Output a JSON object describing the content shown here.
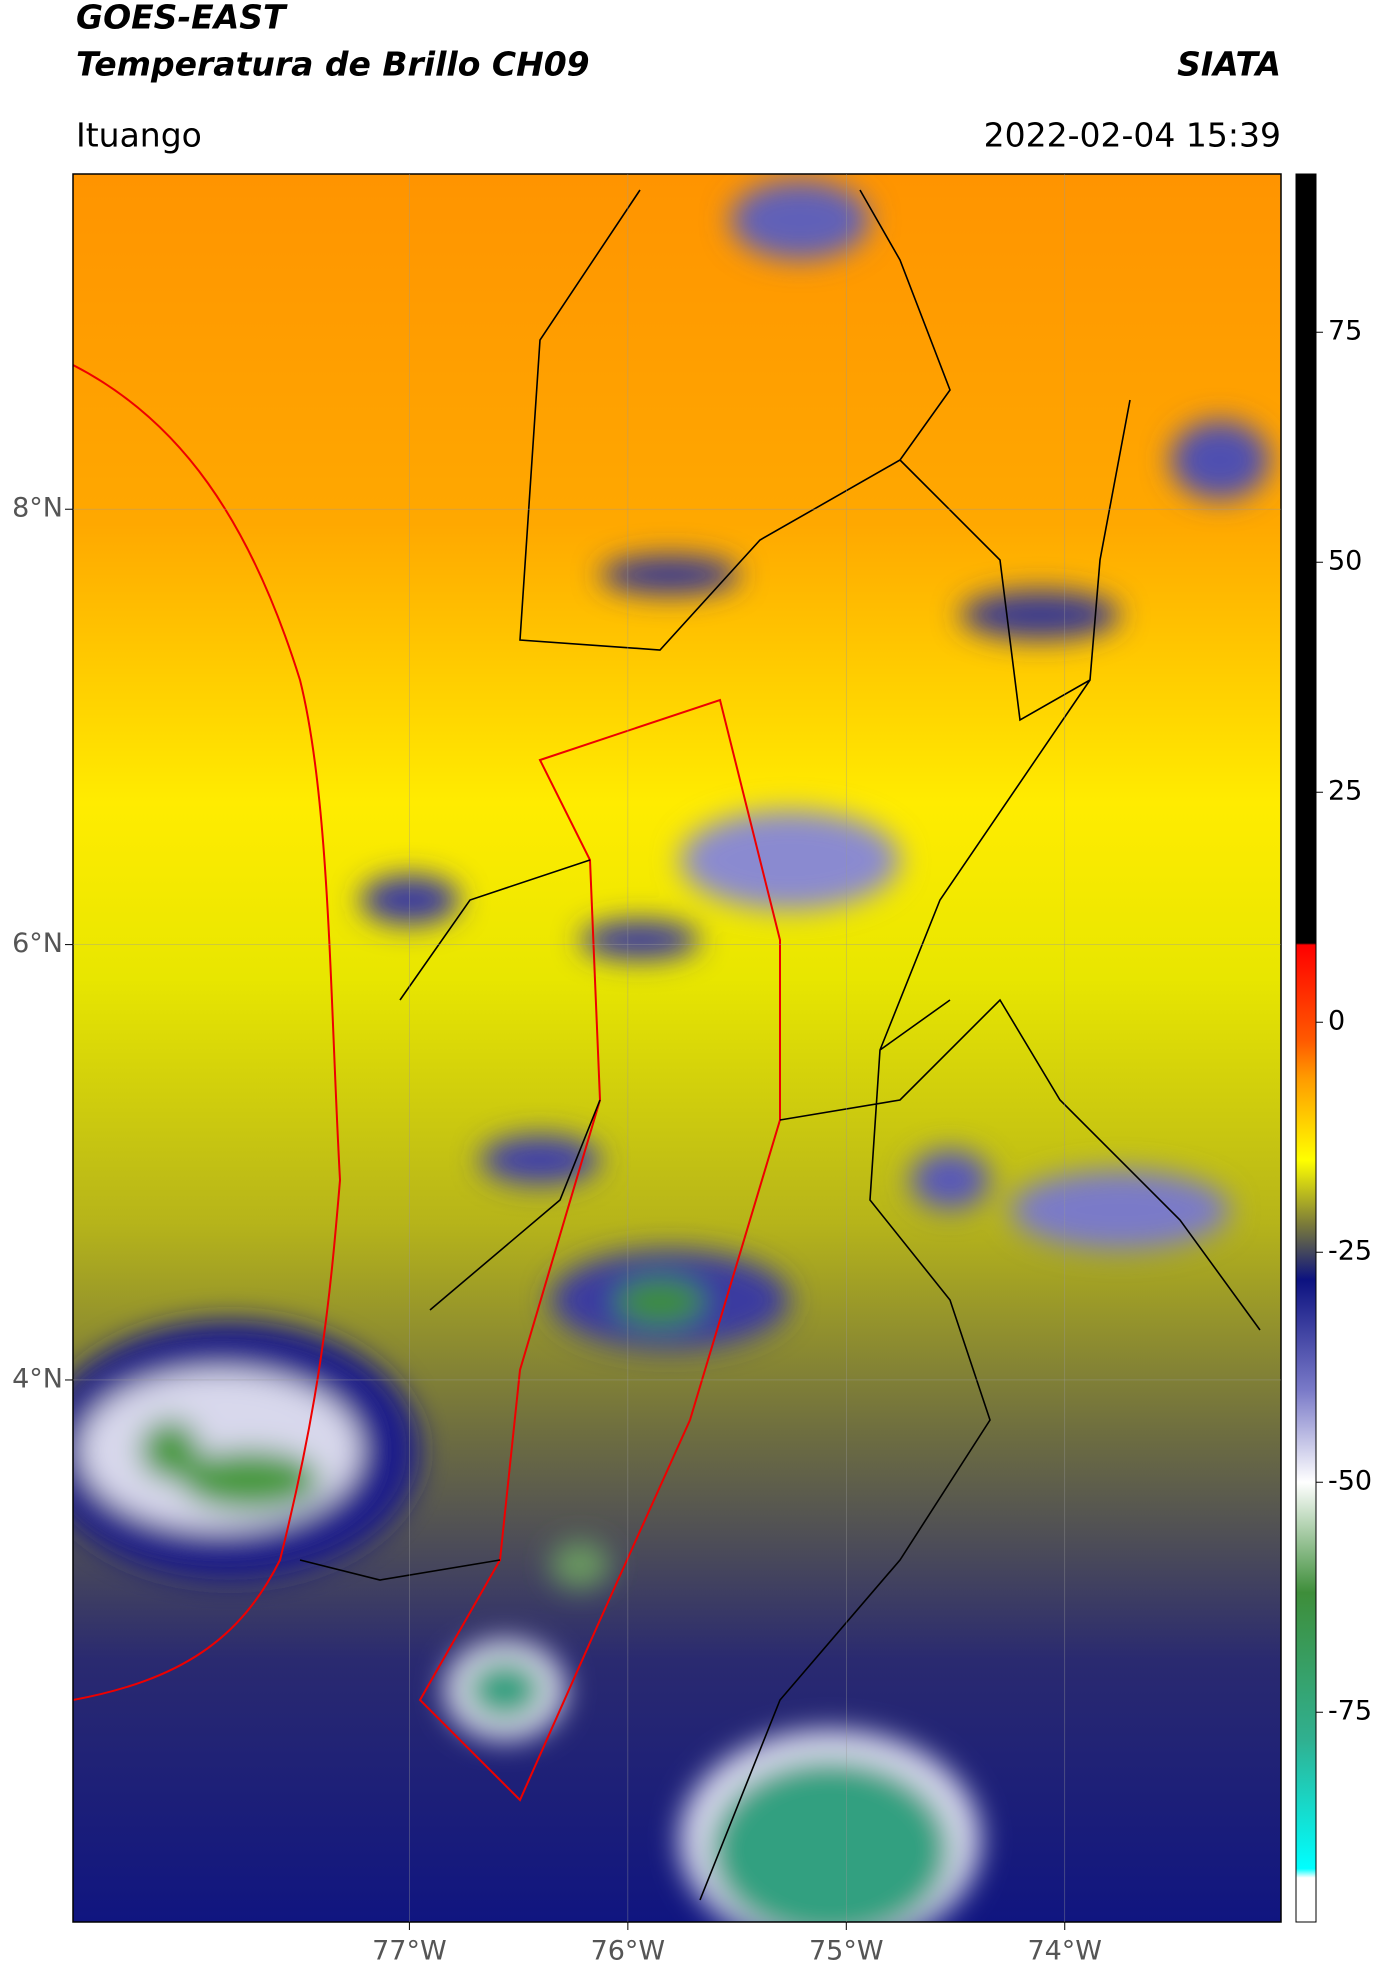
{
  "header": {
    "title": "GOES-EAST",
    "subtitle": "Temperatura de Brillo CH09",
    "brand": "SIATA",
    "location": "Ituango",
    "datetime": "2022-02-04 15:39"
  },
  "map": {
    "xlim": [
      -78.54,
      -73.01
    ],
    "ylim": [
      1.51,
      9.54
    ],
    "xticks": [
      {
        "value": -77,
        "label": "77°W"
      },
      {
        "value": -76,
        "label": "76°W"
      },
      {
        "value": -75,
        "label": "75°W"
      },
      {
        "value": -74,
        "label": "74°W"
      }
    ],
    "yticks": [
      {
        "value": 8,
        "label": "8°N"
      },
      {
        "value": 6,
        "label": "6°N"
      },
      {
        "value": 4,
        "label": "4°N"
      }
    ],
    "grid": true
  },
  "colorbar": {
    "lim": [
      -97.8,
      92.2
    ],
    "ticks": [
      75,
      50,
      25,
      0,
      -25,
      -50,
      -75
    ],
    "stops": [
      {
        "value": 92.2,
        "color": "#000000"
      },
      {
        "value": 8.6,
        "color": "#000000"
      },
      {
        "value": 8.4,
        "color": "#ff0000"
      },
      {
        "value": -2,
        "color": "#ff5a00"
      },
      {
        "value": -6,
        "color": "#ff9a00"
      },
      {
        "value": -15,
        "color": "#ffff00"
      },
      {
        "value": -22,
        "color": "#7a7a3a"
      },
      {
        "value": -28,
        "color": "#0c1280"
      },
      {
        "value": -40,
        "color": "#7a7ac8"
      },
      {
        "value": -50,
        "color": "#ffffff"
      },
      {
        "value": -62,
        "color": "#3e8e3a"
      },
      {
        "value": -78,
        "color": "#30b090"
      },
      {
        "value": -92,
        "color": "#00ffff"
      },
      {
        "value": -93,
        "color": "#ffffff"
      },
      {
        "value": -97.8,
        "color": "#ffffff"
      }
    ]
  }
}
